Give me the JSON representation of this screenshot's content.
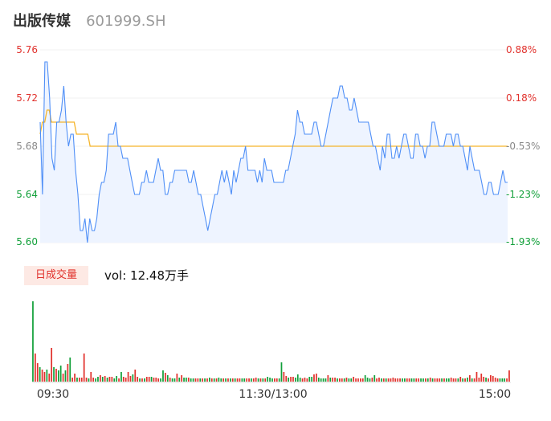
{
  "header": {
    "name": "出版传媒",
    "code": "601999.SH"
  },
  "volume_panel": {
    "label": "日成交量",
    "summary": "vol: 12.48万手"
  },
  "colors": {
    "price_line": "#4f8ff7",
    "price_fill": "#eef4ff",
    "avg_line": "#f5b52b",
    "up": "#e1322d",
    "down": "#12a03a",
    "neutral_text": "#888888",
    "grid": "#f0f0f0"
  },
  "chart_data": [
    {
      "type": "line",
      "title": "",
      "xlabel": "",
      "ylabel": "",
      "ylim": [
        5.6,
        5.76
      ],
      "y_ticks": [
        "5.76",
        "5.72",
        "5.68",
        "5.64",
        "5.60"
      ],
      "pct_ticks": [
        "0.88%",
        "0.18%",
        "-0.53%",
        "-1.23%",
        "-1.93%"
      ],
      "pct_tick_colors": [
        "#e1322d",
        "#e1322d",
        "#888888",
        "#12a03a",
        "#12a03a"
      ],
      "x_ticks": [
        "09:30",
        "11:30/13:00",
        "15:00"
      ],
      "series": [
        {
          "values": [
            5.7,
            5.64,
            5.75,
            5.75,
            5.72,
            5.67,
            5.66,
            5.7,
            5.7,
            5.71,
            5.73,
            5.7,
            5.68,
            5.69,
            5.69,
            5.66,
            5.64,
            5.61,
            5.61,
            5.62,
            5.6,
            5.62,
            5.61,
            5.61,
            5.62,
            5.64,
            5.65,
            5.65,
            5.66,
            5.69,
            5.69,
            5.69,
            5.7,
            5.68,
            5.68,
            5.67,
            5.67,
            5.67,
            5.66,
            5.65,
            5.64,
            5.64,
            5.64,
            5.65,
            5.65,
            5.66,
            5.65,
            5.65,
            5.65,
            5.66,
            5.67,
            5.66,
            5.66,
            5.64,
            5.64,
            5.65,
            5.65,
            5.66,
            5.66,
            5.66,
            5.66,
            5.66,
            5.66,
            5.65,
            5.65,
            5.66,
            5.65,
            5.64,
            5.64,
            5.63,
            5.62,
            5.61,
            5.62,
            5.63,
            5.64,
            5.64,
            5.65,
            5.66,
            5.65,
            5.66,
            5.65,
            5.64,
            5.66,
            5.65,
            5.66,
            5.67,
            5.67,
            5.68,
            5.66,
            5.66,
            5.66,
            5.66,
            5.65,
            5.66,
            5.65,
            5.67,
            5.66,
            5.66,
            5.66,
            5.65,
            5.65,
            5.65,
            5.65,
            5.65,
            5.66,
            5.66,
            5.67,
            5.68,
            5.69,
            5.71,
            5.7,
            5.7,
            5.69,
            5.69,
            5.69,
            5.69,
            5.7,
            5.7,
            5.69,
            5.68,
            5.68,
            5.69,
            5.7,
            5.71,
            5.72,
            5.72,
            5.72,
            5.73,
            5.73,
            5.72,
            5.72,
            5.71,
            5.71,
            5.72,
            5.71,
            5.7,
            5.7,
            5.7,
            5.7,
            5.7,
            5.69,
            5.68,
            5.68,
            5.67,
            5.66,
            5.68,
            5.67,
            5.69,
            5.69,
            5.67,
            5.67,
            5.68,
            5.67,
            5.68,
            5.69,
            5.69,
            5.68,
            5.67,
            5.67,
            5.69,
            5.69,
            5.68,
            5.68,
            5.67,
            5.68,
            5.68,
            5.7,
            5.7,
            5.69,
            5.68,
            5.68,
            5.68,
            5.69,
            5.69,
            5.69,
            5.68,
            5.69,
            5.69,
            5.68,
            5.68,
            5.67,
            5.66,
            5.68,
            5.67,
            5.66,
            5.66,
            5.66,
            5.65,
            5.64,
            5.64,
            5.65,
            5.65,
            5.64,
            5.64,
            5.64,
            5.65,
            5.66,
            5.65,
            5.65
          ]
        },
        {
          "values": [
            5.69,
            5.7,
            5.7,
            5.71,
            5.71,
            5.7,
            5.7,
            5.7,
            5.7,
            5.7,
            5.7,
            5.7,
            5.7,
            5.7,
            5.7,
            5.7,
            5.69,
            5.69,
            5.69,
            5.69,
            5.69,
            5.69,
            5.68,
            5.68,
            5.68,
            5.68,
            5.68,
            5.68,
            5.68,
            5.68,
            5.68,
            5.68,
            5.68,
            5.68,
            5.68,
            5.68,
            5.68,
            5.68,
            5.68,
            5.68,
            5.68,
            5.68,
            5.68,
            5.68,
            5.68,
            5.68,
            5.68,
            5.68,
            5.68,
            5.68,
            5.68,
            5.68,
            5.68,
            5.68,
            5.68,
            5.68,
            5.68,
            5.68,
            5.68,
            5.68,
            5.68,
            5.68,
            5.68,
            5.68,
            5.68,
            5.68,
            5.68,
            5.68,
            5.68,
            5.68,
            5.68,
            5.68,
            5.68,
            5.68,
            5.68,
            5.68,
            5.68,
            5.68,
            5.68,
            5.68,
            5.68,
            5.68,
            5.68,
            5.68,
            5.68,
            5.68,
            5.68,
            5.68,
            5.68,
            5.68,
            5.68,
            5.68,
            5.68,
            5.68,
            5.68,
            5.68,
            5.68,
            5.68,
            5.68,
            5.68,
            5.68,
            5.68,
            5.68,
            5.68,
            5.68,
            5.68,
            5.68,
            5.68,
            5.68,
            5.68,
            5.68,
            5.68,
            5.68,
            5.68,
            5.68,
            5.68,
            5.68,
            5.68,
            5.68,
            5.68,
            5.68,
            5.68,
            5.68,
            5.68,
            5.68,
            5.68,
            5.68,
            5.68,
            5.68,
            5.68,
            5.68,
            5.68,
            5.68,
            5.68,
            5.68,
            5.68,
            5.68,
            5.68,
            5.68,
            5.68,
            5.68,
            5.68,
            5.68,
            5.68,
            5.68,
            5.68,
            5.68,
            5.68,
            5.68,
            5.68,
            5.68,
            5.68,
            5.68,
            5.68,
            5.68,
            5.68,
            5.68,
            5.68,
            5.68,
            5.68,
            5.68,
            5.68,
            5.68,
            5.68,
            5.68,
            5.68,
            5.68,
            5.68,
            5.68,
            5.68,
            5.68,
            5.68,
            5.68,
            5.68,
            5.68,
            5.68,
            5.68,
            5.68,
            5.68,
            5.68,
            5.68,
            5.68,
            5.68,
            5.68,
            5.68,
            5.68,
            5.68,
            5.68,
            5.68,
            5.68,
            5.68,
            5.68,
            5.68,
            5.68,
            5.68,
            5.68,
            5.68,
            5.68,
            5.68,
            5.68,
            5.68,
            5.68,
            5.68,
            5.68,
            5.68,
            5.68,
            5.68
          ]
        }
      ]
    },
    {
      "type": "bar",
      "title": "",
      "xlabel": "",
      "ylabel": "",
      "values": [
        100,
        35,
        23,
        18,
        15,
        12,
        15,
        10,
        42,
        18,
        16,
        14,
        20,
        10,
        14,
        22,
        30,
        5,
        10,
        5,
        5,
        5,
        35,
        5,
        4,
        12,
        5,
        4,
        6,
        8,
        6,
        7,
        5,
        6,
        6,
        4,
        7,
        4,
        12,
        6,
        5,
        12,
        7,
        9,
        15,
        6,
        4,
        4,
        4,
        6,
        6,
        6,
        5,
        5,
        4,
        4,
        14,
        11,
        8,
        5,
        4,
        4,
        10,
        5,
        8,
        5,
        5,
        5,
        4,
        4,
        4,
        4,
        4,
        4,
        4,
        4,
        5,
        4,
        4,
        4,
        5,
        4,
        4,
        4,
        4,
        4,
        4,
        4,
        4,
        4,
        4,
        4,
        4,
        4,
        4,
        4,
        5,
        4,
        4,
        4,
        4,
        6,
        5,
        4,
        4,
        4,
        4,
        24,
        12,
        7,
        5,
        6,
        6,
        5,
        9,
        5,
        4,
        5,
        4,
        6,
        6,
        9,
        10,
        5,
        4,
        4,
        4,
        8,
        5,
        5,
        5,
        4,
        4,
        4,
        4,
        5,
        4,
        4,
        6,
        4,
        4,
        4,
        4,
        8,
        5,
        4,
        5,
        8,
        4,
        5,
        4,
        4,
        4,
        4,
        4,
        5,
        4,
        4,
        4,
        4,
        4,
        4,
        4,
        4,
        4,
        4,
        4,
        4,
        4,
        4,
        4,
        5,
        4,
        4,
        4,
        4,
        4,
        4,
        4,
        4,
        5,
        4,
        4,
        4,
        6,
        4,
        4,
        5,
        8,
        4,
        4,
        12,
        5,
        10,
        6,
        5,
        4,
        8,
        7,
        5,
        4,
        4,
        4,
        4,
        4,
        14
      ],
      "colors": [
        "g",
        "r",
        "r",
        "g",
        "r",
        "r",
        "g",
        "r",
        "r",
        "g",
        "r",
        "g",
        "g",
        "r",
        "g",
        "r",
        "g",
        "r",
        "r",
        "g",
        "r",
        "r",
        "r",
        "r",
        "g",
        "r",
        "r",
        "g",
        "g",
        "r",
        "g",
        "r",
        "g",
        "r",
        "r",
        "g",
        "g",
        "r",
        "g",
        "r",
        "r",
        "r",
        "r",
        "g",
        "r",
        "r",
        "g",
        "r",
        "g",
        "r",
        "r",
        "g",
        "r",
        "r",
        "r",
        "g",
        "g",
        "r",
        "g",
        "r",
        "g",
        "g",
        "r",
        "g",
        "r",
        "g",
        "g",
        "r",
        "g",
        "g",
        "r",
        "r",
        "g",
        "r",
        "g",
        "r",
        "g",
        "r",
        "g",
        "r",
        "g",
        "g",
        "r",
        "g",
        "r",
        "g",
        "r",
        "g",
        "r",
        "r",
        "g",
        "g",
        "r",
        "r",
        "g",
        "r",
        "r",
        "g",
        "r",
        "g",
        "r",
        "g",
        "g",
        "g",
        "r",
        "r",
        "g",
        "g",
        "r",
        "r",
        "g",
        "r",
        "r",
        "g",
        "g",
        "g",
        "r",
        "r",
        "r",
        "g",
        "g",
        "r",
        "r",
        "g",
        "g",
        "g",
        "g",
        "r",
        "g",
        "r",
        "r",
        "g",
        "r",
        "r",
        "g",
        "r",
        "g",
        "g",
        "r",
        "r",
        "r",
        "r",
        "r",
        "g",
        "g",
        "g",
        "r",
        "g",
        "r",
        "r",
        "g",
        "r",
        "g",
        "r",
        "r",
        "r",
        "r",
        "r",
        "r",
        "g",
        "g",
        "r",
        "r",
        "g",
        "g",
        "r",
        "r",
        "g",
        "g",
        "r",
        "g",
        "r",
        "g",
        "r",
        "r",
        "r",
        "g",
        "r",
        "g",
        "g",
        "r",
        "r",
        "r",
        "g",
        "r",
        "g",
        "r",
        "g",
        "r",
        "g",
        "r",
        "r",
        "r",
        "r",
        "r",
        "g",
        "r",
        "r",
        "r",
        "r",
        "r",
        "g",
        "g",
        "g",
        "r"
      ]
    }
  ]
}
